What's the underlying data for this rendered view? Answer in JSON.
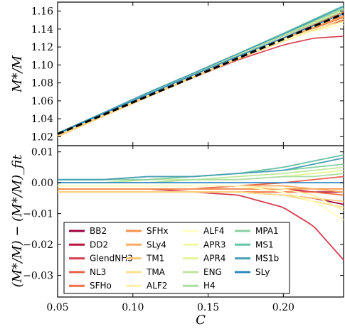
{
  "chart_data": [
    {
      "type": "line",
      "panel": "top",
      "xlabel": "",
      "ylabel": "M*/M",
      "ylim": [
        1.01,
        1.17
      ],
      "xlim": [
        0.05,
        0.24
      ],
      "yticks": [
        "1.02",
        "1.04",
        "1.06",
        "1.08",
        "1.10",
        "1.12",
        "1.14",
        "1.16"
      ],
      "yticks_values": [
        1.02,
        1.04,
        1.06,
        1.08,
        1.1,
        1.12,
        1.14,
        1.16
      ],
      "fit_line": {
        "x": [
          0.05,
          0.24
        ],
        "y": [
          1.023,
          1.157
        ],
        "style": "dashed",
        "color": "#000000"
      },
      "band_endpoints": {
        "x": [
          0.05,
          0.1,
          0.15,
          0.2,
          0.24
        ],
        "upper": [
          1.025,
          1.058,
          1.092,
          1.13,
          1.165
        ],
        "lower": [
          1.02,
          1.052,
          1.086,
          1.117,
          1.132
        ]
      }
    },
    {
      "type": "line",
      "panel": "bottom",
      "xlabel": "C",
      "ylabel": "(M*/M) − (M*/M)_fit",
      "ylim": [
        -0.037,
        0.012
      ],
      "xlim": [
        0.05,
        0.24
      ],
      "xticks": [
        "0.05",
        "0.10",
        "0.15",
        "0.20"
      ],
      "xticks_values": [
        0.05,
        0.1,
        0.15,
        0.2
      ],
      "yticks": [
        "0.01",
        "0.00",
        "−0.01",
        "−0.02",
        "−0.03"
      ],
      "yticks_values": [
        0.01,
        0.0,
        -0.01,
        -0.02,
        -0.03
      ],
      "x": [
        0.05,
        0.08,
        0.11,
        0.14,
        0.17,
        0.2,
        0.22,
        0.24
      ],
      "series": [
        {
          "name": "BB2",
          "color": "#9e0142",
          "values": [
            -0.003,
            -0.003,
            -0.003,
            -0.003,
            -0.003,
            -0.004,
            -0.005,
            -0.007
          ]
        },
        {
          "name": "DD2",
          "color": "#b8163f",
          "values": [
            -0.002,
            -0.002,
            -0.002,
            -0.002,
            -0.002,
            -0.002,
            -0.003,
            -0.003
          ]
        },
        {
          "name": "GlendNH3",
          "color": "#d53e4f",
          "values": [
            -0.002,
            -0.002,
            -0.002,
            -0.003,
            -0.004,
            -0.008,
            -0.014,
            -0.025
          ]
        },
        {
          "name": "NL3",
          "color": "#e8614d",
          "values": [
            -0.002,
            -0.002,
            -0.002,
            -0.002,
            -0.001,
            0.0,
            0.001,
            0.002
          ]
        },
        {
          "name": "SFHo",
          "color": "#f46d43",
          "values": [
            -0.003,
            -0.003,
            -0.003,
            -0.003,
            -0.003,
            -0.003,
            -0.003,
            -0.004
          ]
        },
        {
          "name": "SFHx",
          "color": "#f8924e",
          "values": [
            -0.002,
            -0.002,
            -0.002,
            -0.002,
            -0.002,
            -0.002,
            -0.002,
            -0.002
          ]
        },
        {
          "name": "SLy4",
          "color": "#fdae61",
          "values": [
            -0.001,
            -0.001,
            -0.001,
            -0.001,
            -0.001,
            -0.001,
            -0.002,
            -0.003
          ]
        },
        {
          "name": "TM1",
          "color": "#fdc877",
          "values": [
            -0.003,
            -0.003,
            -0.003,
            -0.003,
            -0.003,
            -0.004,
            -0.005,
            -0.006
          ]
        },
        {
          "name": "TMA",
          "color": "#fee08b",
          "values": [
            -0.003,
            -0.003,
            -0.003,
            -0.003,
            -0.003,
            -0.004,
            -0.006,
            -0.008
          ]
        },
        {
          "name": "ALF2",
          "color": "#fef0a7",
          "values": [
            -0.001,
            -0.001,
            -0.001,
            -0.001,
            -0.001,
            -0.002,
            -0.004,
            -0.009
          ]
        },
        {
          "name": "ALF4",
          "color": "#ffffbf",
          "values": [
            -0.001,
            -0.001,
            -0.001,
            -0.001,
            -0.001,
            -0.003,
            -0.006,
            -0.012
          ]
        },
        {
          "name": "APR3",
          "color": "#f1f9a9",
          "values": [
            0.0,
            0.0,
            0.0,
            0.001,
            0.001,
            0.002,
            0.003,
            0.004
          ]
        },
        {
          "name": "APR4",
          "color": "#e6f598",
          "values": [
            0.0,
            0.0,
            0.0,
            0.001,
            0.001,
            0.002,
            0.003,
            0.004
          ]
        },
        {
          "name": "ENG",
          "color": "#c2e6a0",
          "values": [
            0.0,
            0.0,
            0.001,
            0.001,
            0.002,
            0.003,
            0.004,
            0.005
          ]
        },
        {
          "name": "H4",
          "color": "#abdda4",
          "values": [
            0.0,
            0.0,
            0.0,
            0.001,
            0.001,
            0.002,
            0.002,
            0.003
          ]
        },
        {
          "name": "MPA1",
          "color": "#89d0a4",
          "values": [
            0.001,
            0.001,
            0.001,
            0.002,
            0.003,
            0.004,
            0.005,
            0.006
          ]
        },
        {
          "name": "MS1",
          "color": "#66c2a5",
          "values": [
            0.001,
            0.001,
            0.002,
            0.002,
            0.003,
            0.005,
            0.007,
            0.009
          ]
        },
        {
          "name": "MS1b",
          "color": "#4a9fb5",
          "values": [
            0.001,
            0.001,
            0.002,
            0.002,
            0.003,
            0.004,
            0.006,
            0.008
          ]
        },
        {
          "name": "SLy",
          "color": "#3288bd",
          "values": [
            0.0,
            0.0,
            0.0,
            0.0,
            0.0,
            0.0,
            0.0,
            0.0
          ]
        }
      ],
      "legend": "lower-left"
    }
  ]
}
